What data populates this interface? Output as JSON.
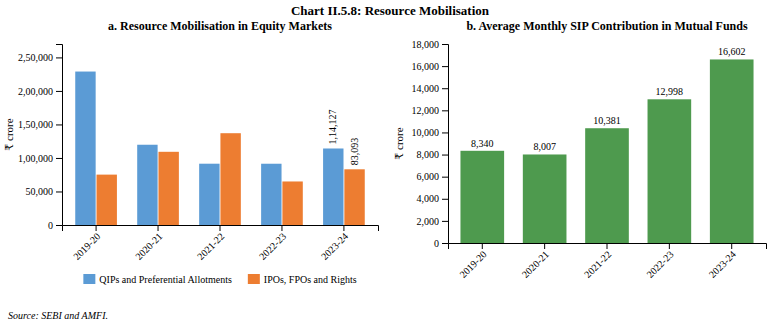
{
  "title": "Chart II.5.8: Resource Mobilisation",
  "source": "Source: SEBI and AMFI.",
  "chart_data": [
    {
      "type": "bar",
      "title": "a. Resource Mobilisation in Equity Markets",
      "categories": [
        "2019-20",
        "2020-21",
        "2021-22",
        "2022-23",
        "2023-24"
      ],
      "series": [
        {
          "name": "QIPs and Preferential Allotments",
          "color": "#5b9bd5",
          "values": [
            228915,
            119724,
            91436,
            91393,
            114127
          ],
          "value_labels": [
            null,
            null,
            null,
            null,
            "1,14,127"
          ]
        },
        {
          "name": "IPOs, FPOs and Rights",
          "color": "#ed7d31",
          "values": [
            75157,
            109186,
            136931,
            64922,
            83093
          ],
          "value_labels": [
            null,
            null,
            null,
            null,
            "83,093"
          ]
        }
      ],
      "ylabel": "₹ crore",
      "ylim": [
        0,
        270000
      ],
      "yticks": [
        0,
        {
          "value": 50000,
          "label": "50,000"
        },
        {
          "value": 100000,
          "label": "1,00,000"
        },
        {
          "value": 150000,
          "label": "1,50,000"
        },
        {
          "value": 200000,
          "label": "2,00,000"
        },
        {
          "value": 250000,
          "label": "2,50,000"
        }
      ],
      "data_labels": true,
      "legend": "bottom"
    },
    {
      "type": "bar",
      "title": "b. Average Monthly SIP Contribution in Mutual Funds",
      "categories": [
        "2019-20",
        "2020-21",
        "2021-22",
        "2022-23",
        "2023-24"
      ],
      "values": [
        8340,
        8007,
        10381,
        12998,
        16602
      ],
      "value_labels": [
        "8,340",
        "8,007",
        "10,381",
        "12,998",
        "16,602"
      ],
      "color": "#4e9a4e",
      "ylabel": "₹ crore",
      "ylim": [
        0,
        18000
      ],
      "yticks": [
        0,
        {
          "value": 2000,
          "label": "2,000"
        },
        {
          "value": 4000,
          "label": "4,000"
        },
        {
          "value": 6000,
          "label": "6,000"
        },
        {
          "value": 8000,
          "label": "8,000"
        },
        {
          "value": 10000,
          "label": "10,000"
        },
        {
          "value": 12000,
          "label": "12,000"
        },
        {
          "value": 14000,
          "label": "14,000"
        },
        {
          "value": 16000,
          "label": "16,000"
        },
        {
          "value": 18000,
          "label": "18,000"
        }
      ],
      "data_labels": true
    }
  ]
}
